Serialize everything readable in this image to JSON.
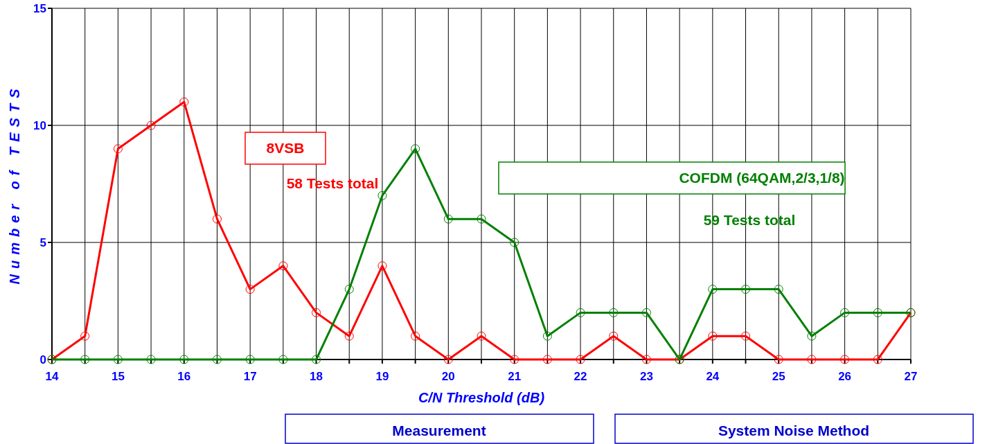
{
  "chart_data": {
    "type": "line",
    "xlabel": "C/N Threshold (dB)",
    "ylabel": "Number of TESTS",
    "x": [
      14,
      14.5,
      15,
      15.5,
      16,
      16.5,
      17,
      17.5,
      18,
      18.5,
      19,
      19.5,
      20,
      20.5,
      21,
      21.5,
      22,
      22.5,
      23,
      23.5,
      24,
      24.5,
      25,
      25.5,
      26,
      26.5,
      27
    ],
    "series": [
      {
        "color": "#ff0000",
        "values": [
          0,
          1,
          9,
          10,
          11,
          6,
          3,
          4,
          2,
          1,
          4,
          1,
          0,
          1,
          0,
          0,
          0,
          1,
          0,
          0,
          1,
          1,
          0,
          0,
          0,
          0,
          2
        ]
      },
      {
        "color": "#008000",
        "values": [
          0,
          0,
          0,
          0,
          0,
          0,
          0,
          0,
          0,
          3,
          7,
          9,
          6,
          6,
          5,
          1,
          2,
          2,
          2,
          0,
          3,
          3,
          3,
          1,
          2,
          2,
          2
        ]
      }
    ],
    "xlim": [
      14,
      27
    ],
    "ylim": [
      0,
      15
    ],
    "xticks": [
      14,
      {
        "value": 14.5,
        "label": null
      },
      15,
      {
        "value": 15.5,
        "label": null
      },
      16,
      {
        "value": 16.5,
        "label": null
      },
      17,
      {
        "value": 17.5,
        "label": null
      },
      18,
      {
        "value": 18.5,
        "label": null
      },
      19,
      {
        "value": 19.5,
        "label": null
      },
      20,
      {
        "value": 20.5,
        "label": null
      },
      21,
      {
        "value": 21.5,
        "label": null
      },
      22,
      {
        "value": 22.5,
        "label": null
      },
      23,
      {
        "value": 23.5,
        "label": null
      },
      24,
      {
        "value": 24.5,
        "label": null
      },
      25,
      {
        "value": 25.5,
        "label": null
      },
      26,
      {
        "value": 26.5,
        "label": null
      },
      27
    ],
    "yticks": [
      0,
      5,
      10,
      15
    ],
    "grid": true,
    "marker": "circle",
    "line_style": "solid",
    "annotations": [
      "8VSB",
      "58 Tests total",
      "COFDM (64QAM,2/3,1/8)",
      "59 Tests total",
      "Measurement",
      "System Noise Method"
    ]
  }
}
